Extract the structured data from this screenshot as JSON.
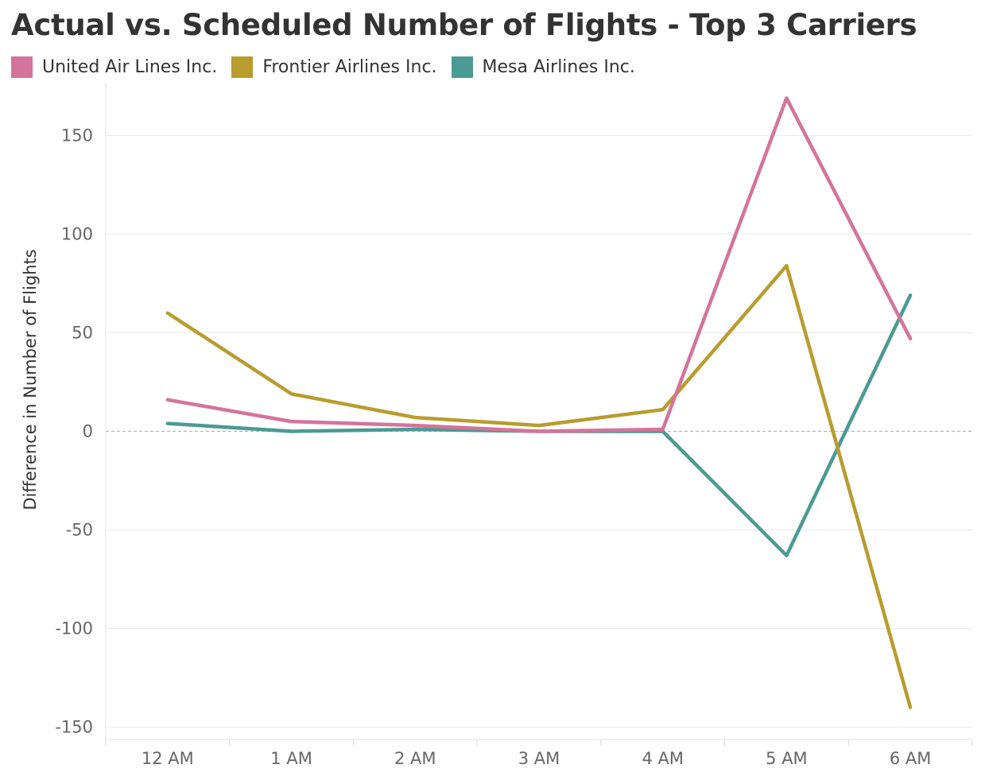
{
  "chart_data": {
    "type": "line",
    "title": "Actual vs. Scheduled Number of Flights - Top 3 Carriers",
    "xlabel": "",
    "ylabel": "Difference in Number of Flights",
    "categories": [
      "12 AM",
      "1 AM",
      "2 AM",
      "3 AM",
      "4 AM",
      "5 AM",
      "6 AM"
    ],
    "y_ticks": [
      150,
      100,
      50,
      0,
      -50,
      -100,
      -150
    ],
    "ylim": [
      -150,
      175
    ],
    "grid": true,
    "zero_line": "dashed",
    "legend_position": "top-left",
    "series": [
      {
        "name": "United Air Lines Inc.",
        "color": "#d4749a",
        "values": [
          16,
          5,
          3,
          0,
          1,
          169,
          47
        ]
      },
      {
        "name": "Frontier Airlines Inc.",
        "color": "#b89c2e",
        "values": [
          60,
          19,
          7,
          3,
          11,
          84,
          -140
        ]
      },
      {
        "name": "Mesa Airlines Inc.",
        "color": "#4b9a94",
        "values": [
          4,
          0,
          1,
          0,
          0,
          -63,
          69
        ]
      }
    ]
  }
}
